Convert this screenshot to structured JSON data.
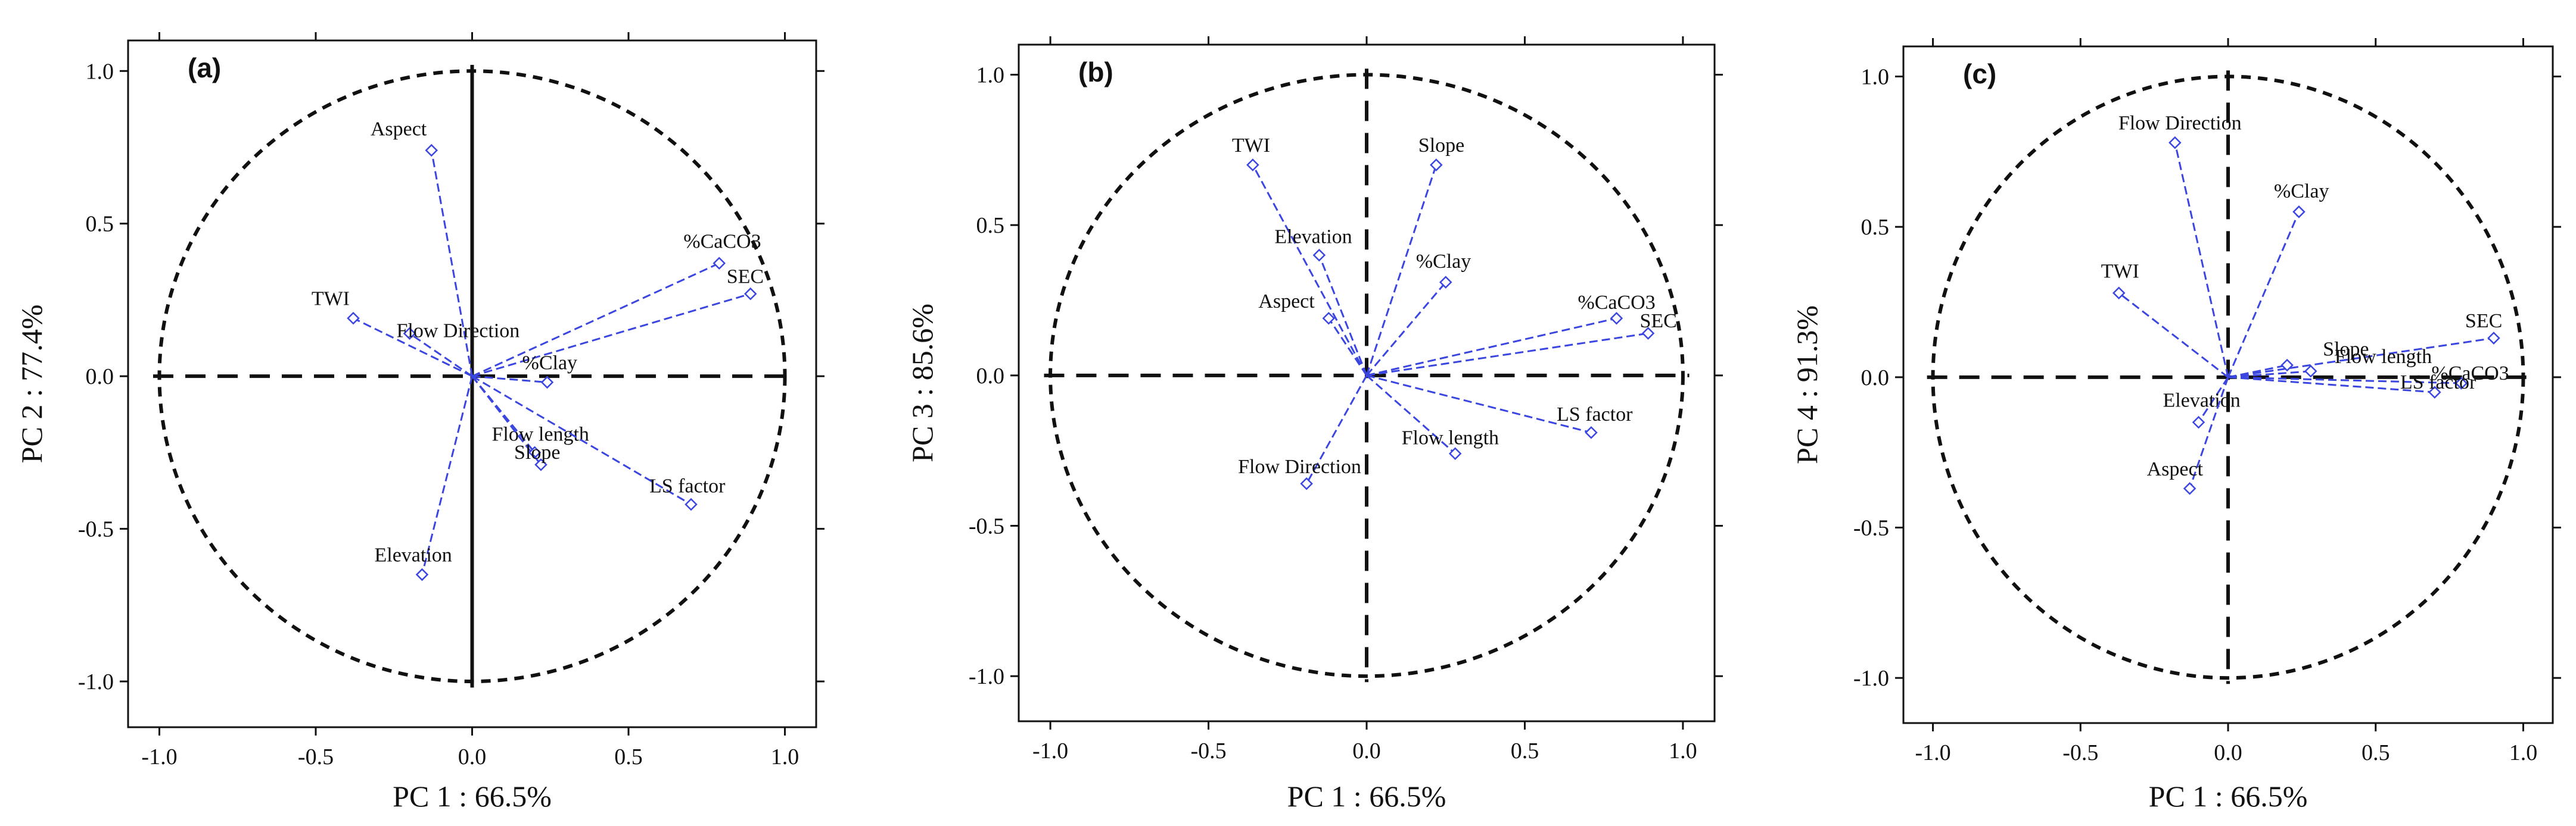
{
  "chart_data": [
    {
      "type": "scatter",
      "panel_label": "(a)",
      "xlabel": "PC 1 : 66.5%",
      "ylabel": "PC 2 : 77.4%",
      "xlim": [
        -1.1,
        1.1
      ],
      "ylim": [
        -1.15,
        1.1
      ],
      "xticks": [
        "-1.0",
        "-0.5",
        "0.0",
        "0.5",
        "1.0"
      ],
      "yticks": [
        "-1.0",
        "-0.5",
        "0.0",
        "0.5",
        "1.0"
      ],
      "unit_circle": true,
      "zero_lines": {
        "horizontal": "dashed",
        "vertical": "solid"
      },
      "points": [
        {
          "label": "Aspect",
          "x": -0.13,
          "y": 0.74
        },
        {
          "label": "TWI",
          "x": -0.38,
          "y": 0.19
        },
        {
          "label": "Flow Direction",
          "x": -0.2,
          "y": 0.14
        },
        {
          "label": "%CaCO3",
          "x": 0.79,
          "y": 0.37
        },
        {
          "label": "SEC",
          "x": 0.89,
          "y": 0.27
        },
        {
          "label": "%Clay",
          "x": 0.24,
          "y": -0.02
        },
        {
          "label": "Flow length",
          "x": 0.2,
          "y": -0.25
        },
        {
          "label": "Slope",
          "x": 0.22,
          "y": -0.29
        },
        {
          "label": "LS factor",
          "x": 0.7,
          "y": -0.42
        },
        {
          "label": "Elevation",
          "x": -0.16,
          "y": -0.65
        }
      ]
    },
    {
      "type": "scatter",
      "panel_label": "(b)",
      "xlabel": "PC 1 : 66.5%",
      "ylabel": "PC 3 : 85.6%",
      "xlim": [
        -1.1,
        1.1
      ],
      "ylim": [
        -1.15,
        1.1
      ],
      "xticks": [
        "-1.0",
        "-0.5",
        "0.0",
        "0.5",
        "1.0"
      ],
      "yticks": [
        "-1.0",
        "-0.5",
        "0.0",
        "0.5",
        "1.0"
      ],
      "unit_circle": true,
      "zero_lines": {
        "horizontal": "dashed",
        "vertical": "dashed"
      },
      "points": [
        {
          "label": "TWI",
          "x": -0.36,
          "y": 0.7
        },
        {
          "label": "Slope",
          "x": 0.22,
          "y": 0.7
        },
        {
          "label": "Elevation",
          "x": -0.15,
          "y": 0.4
        },
        {
          "label": "%Clay",
          "x": 0.25,
          "y": 0.31
        },
        {
          "label": "Aspect",
          "x": -0.12,
          "y": 0.19
        },
        {
          "label": "%CaCO3",
          "x": 0.79,
          "y": 0.19
        },
        {
          "label": "SEC",
          "x": 0.89,
          "y": 0.14
        },
        {
          "label": "LS factor",
          "x": 0.71,
          "y": -0.19
        },
        {
          "label": "Flow length",
          "x": 0.28,
          "y": -0.26
        },
        {
          "label": "Flow Direction",
          "x": -0.19,
          "y": -0.36
        }
      ]
    },
    {
      "type": "scatter",
      "panel_label": "(c)",
      "xlabel": "PC 1 : 66.5%",
      "ylabel": "PC 4 : 91.3%",
      "xlim": [
        -1.1,
        1.1
      ],
      "ylim": [
        -1.15,
        1.1
      ],
      "xticks": [
        "-1.0",
        "-0.5",
        "0.0",
        "0.5",
        "1.0"
      ],
      "yticks": [
        "-1.0",
        "-0.5",
        "0.0",
        "0.5",
        "1.0"
      ],
      "unit_circle": true,
      "zero_lines": {
        "horizontal": "dashed",
        "vertical": "dashed"
      },
      "points": [
        {
          "label": "Flow Direction",
          "x": -0.18,
          "y": 0.78
        },
        {
          "label": "%Clay",
          "x": 0.24,
          "y": 0.55
        },
        {
          "label": "TWI",
          "x": -0.37,
          "y": 0.28
        },
        {
          "label": "SEC",
          "x": 0.9,
          "y": 0.13
        },
        {
          "label": "Slope",
          "x": 0.2,
          "y": 0.04
        },
        {
          "label": "Flow length",
          "x": 0.28,
          "y": 0.02
        },
        {
          "label": "%CaCO3",
          "x": 0.79,
          "y": -0.02
        },
        {
          "label": "LS factor",
          "x": 0.7,
          "y": -0.05
        },
        {
          "label": "Elevation",
          "x": -0.1,
          "y": -0.15
        },
        {
          "label": "Aspect",
          "x": -0.13,
          "y": -0.37
        }
      ]
    }
  ],
  "colors": {
    "vector": "#3b46e0",
    "marker": "#3b46e0",
    "axis": "#111111",
    "background": "#ffffff"
  }
}
